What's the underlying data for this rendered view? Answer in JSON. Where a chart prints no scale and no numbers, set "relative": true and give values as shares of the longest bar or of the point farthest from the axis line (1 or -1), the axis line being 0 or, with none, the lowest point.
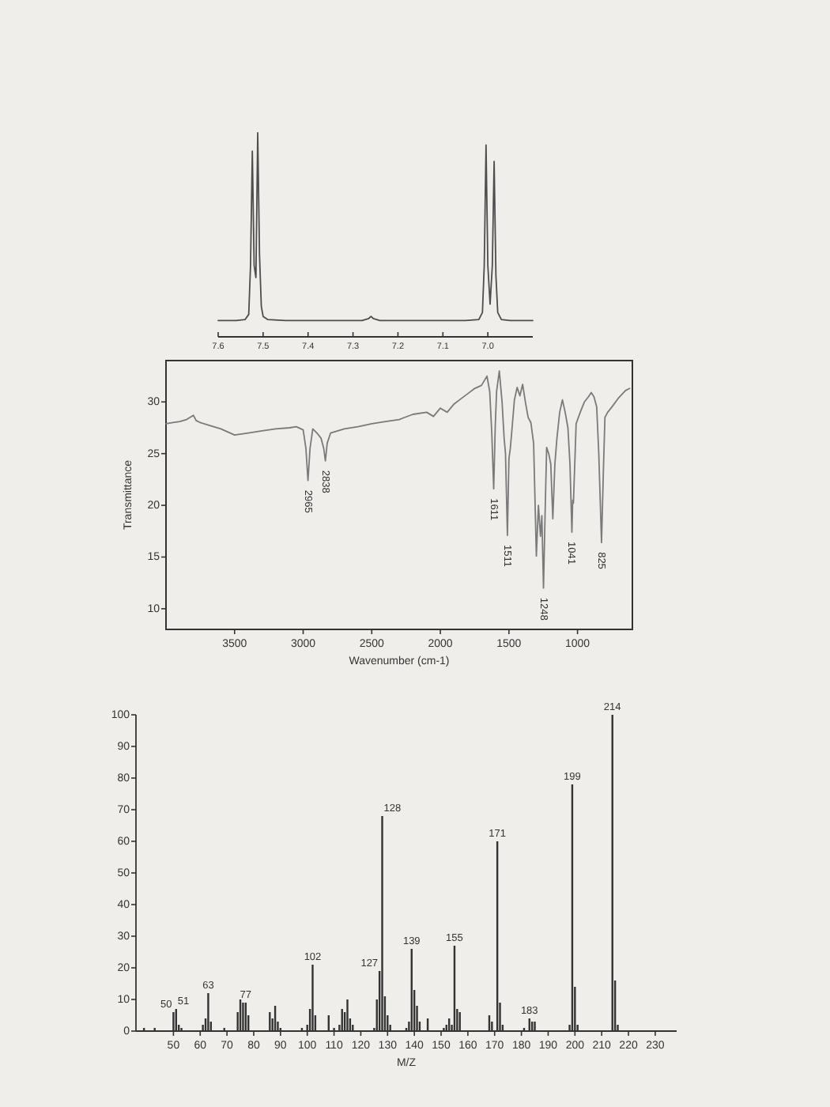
{
  "chart_data": [
    {
      "type": "line",
      "relative": true,
      "color": "#4d4d4d",
      "xlim": [
        7.6,
        6.9
      ],
      "xticks": [
        7.6,
        7.5,
        7.4,
        7.3,
        7.2,
        7.1,
        {
          "value": 7,
          "label": "7.0"
        }
      ],
      "x": [
        7.6,
        7.56,
        7.54,
        7.532,
        7.528,
        7.524,
        7.52,
        7.516,
        7.512,
        7.508,
        7.504,
        7.5,
        7.49,
        7.45,
        7.35,
        7.28,
        7.265,
        7.26,
        7.255,
        7.24,
        7.15,
        7.05,
        7.02,
        7.012,
        7.008,
        7.004,
        7.0,
        6.995,
        6.99,
        6.986,
        6.982,
        6.978,
        6.97,
        6.95,
        6.9
      ],
      "values": [
        0.08,
        0.08,
        0.085,
        0.11,
        0.35,
        0.91,
        0.35,
        0.29,
        1.0,
        0.4,
        0.15,
        0.1,
        0.085,
        0.08,
        0.08,
        0.08,
        0.09,
        0.1,
        0.09,
        0.08,
        0.08,
        0.08,
        0.085,
        0.12,
        0.35,
        0.94,
        0.35,
        0.16,
        0.35,
        0.86,
        0.3,
        0.12,
        0.085,
        0.08,
        0.08
      ]
    },
    {
      "type": "line",
      "color": "#7a7a7a",
      "xlim": [
        4000,
        600
      ],
      "ylim": [
        8,
        34
      ],
      "xticks": [
        3500,
        3000,
        2500,
        2000,
        1500,
        1000
      ],
      "yticks": [
        10,
        15,
        20,
        25,
        30
      ],
      "xlabel": "Wavenumber (cm-1)",
      "ylabel": "Transmittance",
      "x": [
        4000,
        3950,
        3900,
        3850,
        3800,
        3780,
        3750,
        3700,
        3600,
        3500,
        3400,
        3300,
        3200,
        3100,
        3050,
        3000,
        2980,
        2965,
        2950,
        2930,
        2900,
        2870,
        2850,
        2838,
        2825,
        2800,
        2700,
        2600,
        2500,
        2400,
        2300,
        2200,
        2100,
        2050,
        2000,
        1950,
        1900,
        1850,
        1800,
        1750,
        1700,
        1660,
        1640,
        1625,
        1611,
        1600,
        1590,
        1570,
        1550,
        1535,
        1525,
        1511,
        1500,
        1490,
        1480,
        1460,
        1440,
        1420,
        1400,
        1380,
        1360,
        1340,
        1320,
        1300,
        1285,
        1270,
        1260,
        1248,
        1235,
        1225,
        1210,
        1195,
        1180,
        1165,
        1150,
        1130,
        1110,
        1090,
        1070,
        1055,
        1041,
        1035,
        1030,
        1020,
        1010,
        980,
        950,
        920,
        900,
        880,
        860,
        845,
        825,
        810,
        800,
        780,
        750,
        700,
        650,
        620
      ],
      "values": [
        27.9,
        28.0,
        28.1,
        28.3,
        28.7,
        28.2,
        28.0,
        27.8,
        27.4,
        26.8,
        27.0,
        27.2,
        27.4,
        27.5,
        27.6,
        27.3,
        25.5,
        22.4,
        25.5,
        27.4,
        27.0,
        26.5,
        25.5,
        24.3,
        26.0,
        27.0,
        27.4,
        27.6,
        27.9,
        28.1,
        28.3,
        28.8,
        29.0,
        28.6,
        29.4,
        29.0,
        29.8,
        30.3,
        30.8,
        31.3,
        31.6,
        32.5,
        31.0,
        27.0,
        21.6,
        27.5,
        31.0,
        33.0,
        30.0,
        26.5,
        25.0,
        17.1,
        24.5,
        25.5,
        27.0,
        30.2,
        31.4,
        30.6,
        31.7,
        30.0,
        28.5,
        28.0,
        26.0,
        15.1,
        20.0,
        17.0,
        19.0,
        12.0,
        20.0,
        25.6,
        25.0,
        24.0,
        18.7,
        24.0,
        26.5,
        29.0,
        30.2,
        29.0,
        27.5,
        24.0,
        17.4,
        20.5,
        20.2,
        24.0,
        27.9,
        29.0,
        30.0,
        30.5,
        30.9,
        30.5,
        29.5,
        25.0,
        16.4,
        24.0,
        28.5,
        29.0,
        29.5,
        30.4,
        31.1,
        31.3
      ],
      "annotations": [
        {
          "text": "2965",
          "x": 2965,
          "y": 22.4
        },
        {
          "text": "2838",
          "x": 2838,
          "y": 24.3
        },
        {
          "text": "1611",
          "x": 1611,
          "y": 21.6
        },
        {
          "text": "1511",
          "x": 1511,
          "y": 17.1
        },
        {
          "text": "1248",
          "x": 1248,
          "y": 12.0
        },
        {
          "text": "1041",
          "x": 1041,
          "y": 17.4
        },
        {
          "text": "825",
          "x": 825,
          "y": 16.4
        }
      ]
    },
    {
      "type": "bar",
      "color": "#333333",
      "xlim": [
        36,
        238
      ],
      "ylim": [
        0,
        100
      ],
      "xticks": [
        50,
        60,
        70,
        80,
        90,
        100,
        110,
        120,
        130,
        140,
        150,
        160,
        170,
        180,
        190,
        200,
        210,
        220,
        230
      ],
      "yticks": [
        0,
        10,
        20,
        30,
        40,
        50,
        60,
        70,
        80,
        90,
        100
      ],
      "xlabel": "M/Z",
      "x": [
        39,
        43,
        50,
        51,
        52,
        53,
        61,
        62,
        63,
        64,
        69,
        74,
        75,
        76,
        77,
        78,
        86,
        87,
        88,
        89,
        90,
        98,
        100,
        101,
        102,
        103,
        108,
        110,
        112,
        113,
        114,
        115,
        116,
        117,
        125,
        126,
        127,
        128,
        129,
        130,
        131,
        137,
        138,
        139,
        140,
        141,
        142,
        145,
        151,
        152,
        153,
        154,
        155,
        156,
        157,
        168,
        169,
        171,
        172,
        173,
        181,
        183,
        184,
        185,
        198,
        199,
        200,
        201,
        214,
        215,
        216
      ],
      "values": [
        1,
        1,
        6,
        7,
        2,
        1,
        2,
        4,
        12,
        3,
        1,
        6,
        10,
        9,
        9,
        5,
        6,
        4,
        8,
        3,
        1,
        1,
        2,
        7,
        21,
        5,
        5,
        1,
        2,
        7,
        6,
        10,
        4,
        2,
        1,
        10,
        19,
        68,
        11,
        5,
        2,
        1,
        3,
        26,
        13,
        8,
        3,
        4,
        1,
        2,
        4,
        2,
        27,
        7,
        6,
        5,
        3,
        60,
        9,
        2,
        1,
        4,
        3,
        3,
        2,
        78,
        14,
        2,
        100,
        16,
        2
      ],
      "annotations": [
        {
          "text": "50",
          "x": 50,
          "y": 6
        },
        {
          "text": "51",
          "x": 51,
          "y": 7
        },
        {
          "text": "63",
          "x": 63,
          "y": 12
        },
        {
          "text": "77",
          "x": 77,
          "y": 9
        },
        {
          "text": "102",
          "x": 102,
          "y": 21
        },
        {
          "text": "127",
          "x": 127,
          "y": 19
        },
        {
          "text": "128",
          "x": 128,
          "y": 68
        },
        {
          "text": "139",
          "x": 139,
          "y": 26
        },
        {
          "text": "155",
          "x": 155,
          "y": 27
        },
        {
          "text": "171",
          "x": 171,
          "y": 60
        },
        {
          "text": "183",
          "x": 183,
          "y": 4
        },
        {
          "text": "199",
          "x": 199,
          "y": 78
        },
        {
          "text": "214",
          "x": 214,
          "y": 100
        }
      ]
    }
  ]
}
